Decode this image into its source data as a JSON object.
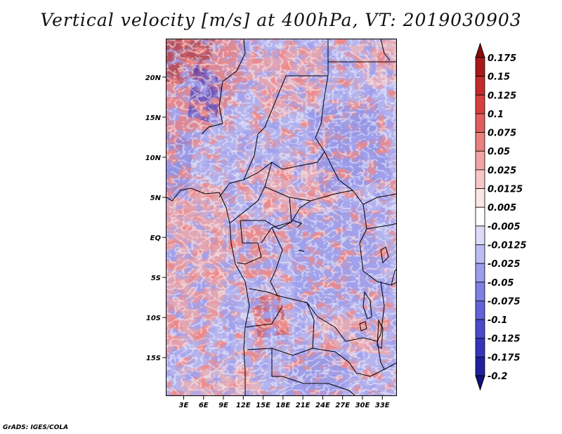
{
  "title": "Vertical velocity [m/s] at 400hPa, VT: 2019030903",
  "credit": "GrADS: IGES/COLA",
  "map": {
    "lon_labels": [
      "3E",
      "6E",
      "9E",
      "12E",
      "15E",
      "18E",
      "21E",
      "24E",
      "27E",
      "30E",
      "33E"
    ],
    "lat_labels": [
      "20N",
      "15N",
      "10N",
      "5N",
      "EQ",
      "5S",
      "10S",
      "15S"
    ],
    "lon_values": [
      3,
      6,
      9,
      12,
      15,
      18,
      21,
      24,
      27,
      30,
      33
    ],
    "lat_values": [
      20,
      15,
      10,
      5,
      0,
      -5,
      -10,
      -15
    ],
    "lon_range": [
      0.3,
      35.2
    ],
    "lat_range": [
      -19.8,
      24.8
    ]
  },
  "colorbar": {
    "labels": [
      "0.175",
      "0.15",
      "0.125",
      "0.1",
      "0.075",
      "0.05",
      "0.025",
      "0.0125",
      "0.005",
      "-0.005",
      "-0.0125",
      "-0.025",
      "-0.05",
      "-0.075",
      "-0.1",
      "-0.125",
      "-0.175",
      "-0.2"
    ],
    "colors": [
      "#8b0a0a",
      "#a81a1a",
      "#c42a2a",
      "#d84040",
      "#e25e5e",
      "#ea7f7f",
      "#f2a3a3",
      "#f7c7c7",
      "#fbe5e5",
      "#ffffff",
      "#dcdcfa",
      "#bdbdf5",
      "#9c9ced",
      "#7f7fe4",
      "#6262da",
      "#4a4acd",
      "#3535bb",
      "#20209f",
      "#10107d"
    ]
  }
}
